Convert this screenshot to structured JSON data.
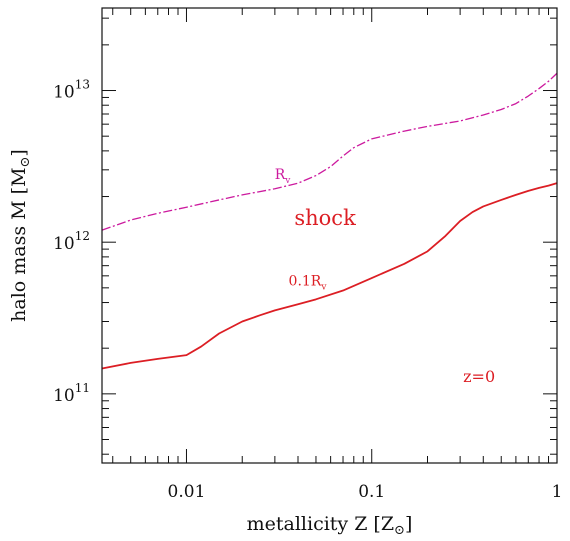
{
  "chart_data": {
    "type": "line",
    "title": "",
    "xlabel": "metallicity Z [Z",
    "xlabel_sub": "⊙",
    "xlabel_close": "]",
    "ylabel": "halo mass M [M",
    "ylabel_sub": "⊙",
    "ylabel_close": "]",
    "xscale": "log",
    "yscale": "log",
    "xlim": [
      0.0035,
      1
    ],
    "ylim": [
      35000000000,
      35000000000000
    ],
    "grid": false,
    "x_ticks": [
      {
        "value": 0.01,
        "label": "0.01"
      },
      {
        "value": 0.1,
        "label": "0.1"
      },
      {
        "value": 1,
        "label": "1"
      }
    ],
    "y_ticks": [
      {
        "value": 100000000000,
        "base": "10",
        "exp": "11"
      },
      {
        "value": 1000000000000,
        "base": "10",
        "exp": "12"
      },
      {
        "value": 10000000000000,
        "base": "10",
        "exp": "13"
      }
    ],
    "series": [
      {
        "name": "R",
        "name_sub": "v",
        "color": "#cc1a9e",
        "style": "dash-dot",
        "points": [
          [
            0.0035,
            1200000000000
          ],
          [
            0.005,
            1400000000000
          ],
          [
            0.007,
            1550000000000
          ],
          [
            0.01,
            1700000000000
          ],
          [
            0.015,
            1900000000000
          ],
          [
            0.02,
            2050000000000
          ],
          [
            0.03,
            2250000000000
          ],
          [
            0.04,
            2450000000000
          ],
          [
            0.05,
            2750000000000
          ],
          [
            0.06,
            3150000000000
          ],
          [
            0.07,
            3700000000000
          ],
          [
            0.08,
            4200000000000
          ],
          [
            0.1,
            4800000000000
          ],
          [
            0.15,
            5400000000000
          ],
          [
            0.2,
            5800000000000
          ],
          [
            0.3,
            6300000000000
          ],
          [
            0.4,
            6900000000000
          ],
          [
            0.5,
            7500000000000
          ],
          [
            0.6,
            8200000000000
          ],
          [
            0.7,
            9200000000000
          ],
          [
            0.8,
            10300000000000
          ],
          [
            0.9,
            11500000000000
          ],
          [
            1.0,
            13000000000000
          ]
        ]
      },
      {
        "name": "0.1R",
        "name_sub": "v",
        "color": "#dc1e24",
        "style": "solid",
        "points": [
          [
            0.0035,
            147000000000
          ],
          [
            0.005,
            160000000000
          ],
          [
            0.007,
            170000000000
          ],
          [
            0.01,
            180000000000
          ],
          [
            0.012,
            205000000000
          ],
          [
            0.015,
            250000000000
          ],
          [
            0.02,
            300000000000
          ],
          [
            0.025,
            330000000000
          ],
          [
            0.03,
            355000000000
          ],
          [
            0.04,
            390000000000
          ],
          [
            0.05,
            420000000000
          ],
          [
            0.07,
            480000000000
          ],
          [
            0.1,
            580000000000
          ],
          [
            0.15,
            720000000000
          ],
          [
            0.2,
            870000000000
          ],
          [
            0.25,
            1100000000000
          ],
          [
            0.3,
            1380000000000
          ],
          [
            0.35,
            1580000000000
          ],
          [
            0.4,
            1720000000000
          ],
          [
            0.5,
            1900000000000
          ],
          [
            0.6,
            2050000000000
          ],
          [
            0.7,
            2180000000000
          ],
          [
            0.8,
            2280000000000
          ],
          [
            0.9,
            2360000000000
          ],
          [
            1.0,
            2450000000000
          ]
        ]
      }
    ],
    "annotations": [
      {
        "key": "rv",
        "text": "R",
        "sub": "v",
        "x": 0.033,
        "y": 2600000000000,
        "color": "#cc1a9e",
        "size": "small"
      },
      {
        "key": "shock",
        "text": "shock",
        "x": 0.056,
        "y": 1300000000000,
        "color": "#dc1e24",
        "size": "large"
      },
      {
        "key": "01rv",
        "text": "0.1R",
        "sub": "v",
        "x": 0.045,
        "y": 520000000000,
        "color": "#dc1e24",
        "size": "small"
      },
      {
        "key": "z0",
        "text": "z=0",
        "x": 0.38,
        "y": 120000000000,
        "color": "#dc1e24",
        "size": "medium"
      }
    ]
  }
}
